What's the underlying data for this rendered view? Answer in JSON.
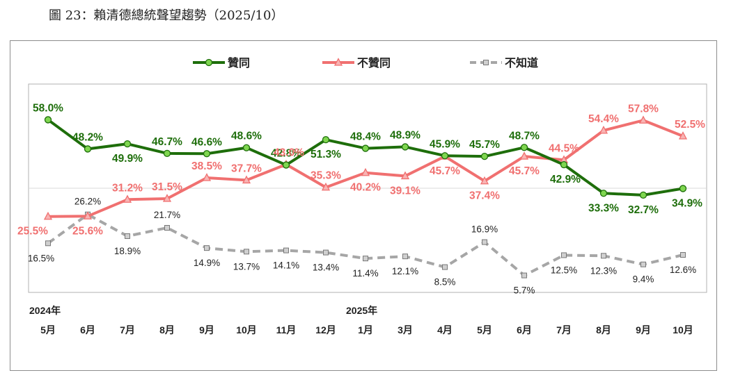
{
  "title": "圖 23：賴清德總統聲望趨勢（2025/10）",
  "chart_data": {
    "type": "line",
    "categories": [
      "5月",
      "6月",
      "7月",
      "8月",
      "9月",
      "10月",
      "11月",
      "12月",
      "1月",
      "3月",
      "4月",
      "5月",
      "6月",
      "7月",
      "8月",
      "9月",
      "10月"
    ],
    "year_labels": [
      {
        "index": 0,
        "label": "2024年"
      },
      {
        "index": 8,
        "label": "2025年"
      }
    ],
    "series": [
      {
        "name": "贊同",
        "color": "#1e6e0b",
        "marker_fill": "#7fd650",
        "marker": "circle",
        "dash": false,
        "values": [
          58.0,
          48.2,
          49.9,
          46.7,
          46.6,
          48.6,
          42.8,
          51.3,
          48.4,
          48.9,
          45.9,
          45.7,
          48.7,
          42.9,
          33.3,
          32.7,
          34.9
        ],
        "labels": [
          "58.0%",
          "48.2%",
          "49.9%",
          "46.7%",
          "46.6%",
          "48.6%",
          "42.8%",
          "51.3%",
          "48.4%",
          "48.9%",
          "45.9%",
          "45.7%",
          "48.7%",
          "42.9%",
          "33.3%",
          "32.7%",
          "34.9%"
        ]
      },
      {
        "name": "不贊同",
        "color": "#f07070",
        "marker_fill": "#f8b4b4",
        "marker": "triangle",
        "dash": false,
        "values": [
          25.5,
          25.6,
          31.2,
          31.5,
          38.5,
          37.7,
          43.0,
          35.3,
          40.2,
          39.1,
          45.7,
          37.4,
          45.7,
          44.5,
          54.4,
          57.8,
          52.5
        ],
        "labels": [
          "25.5%",
          "25.6%",
          "31.2%",
          "31.5%",
          "38.5%",
          "37.7%",
          "43.0%",
          "35.3%",
          "40.2%",
          "39.1%",
          "45.7%",
          "37.4%",
          "45.7%",
          "44.5%",
          "54.4%",
          "57.8%",
          "52.5%"
        ]
      },
      {
        "name": "不知道",
        "color": "#a6a6a6",
        "marker_fill": "#d0d0d0",
        "marker": "square",
        "dash": true,
        "values": [
          16.5,
          26.2,
          18.9,
          21.7,
          14.9,
          13.7,
          14.1,
          13.4,
          11.4,
          12.1,
          8.5,
          16.9,
          5.7,
          12.5,
          12.3,
          9.4,
          12.6
        ],
        "labels": [
          "16.5%",
          "26.2%",
          "18.9%",
          "21.7%",
          "14.9%",
          "13.7%",
          "14.1%",
          "13.4%",
          "11.4%",
          "12.1%",
          "8.5%",
          "16.9%",
          "5.7%",
          "12.5%",
          "12.3%",
          "9.4%",
          "12.6%"
        ]
      }
    ],
    "ylim": [
      0,
      70
    ],
    "grid": true,
    "legend_position": "top"
  }
}
